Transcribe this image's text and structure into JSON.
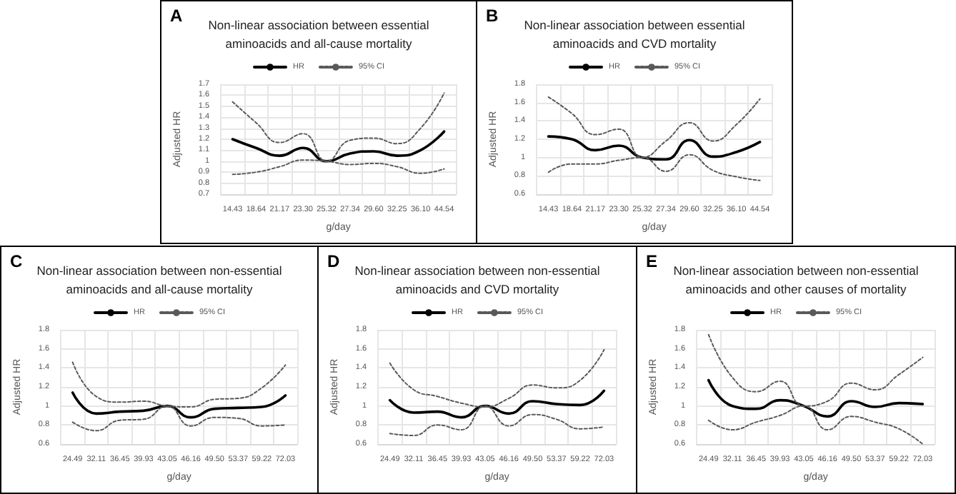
{
  "chart_data": [
    {
      "type": "line",
      "title": "Non-linear association between essential aminoacids and all-cause mortality",
      "annotations": [
        "A"
      ],
      "xlabel": "g/day",
      "ylabel": "Adjusted HR",
      "categories": [
        "14.43",
        "18.64",
        "21.17",
        "23.30",
        "25.32",
        "27.34",
        "29.60",
        "32.25",
        "36.10",
        "44.54"
      ],
      "ylim": [
        0.7,
        1.7
      ],
      "yticks": [
        0.7,
        0.8,
        0.9,
        1,
        1.1,
        1.2,
        1.3,
        1.4,
        1.5,
        1.6,
        1.7
      ],
      "grid": true,
      "legend": "top",
      "marker": "none",
      "series": [
        {
          "name": "HR",
          "color": "#000000",
          "line_style": "solid",
          "values": [
            1.2,
            1.12,
            1.05,
            1.12,
            1.0,
            1.07,
            1.09,
            1.05,
            1.1,
            1.27
          ]
        },
        {
          "name": "95% CI",
          "color": "#595959",
          "line_style": "dotted",
          "values": [
            1.54,
            1.35,
            1.17,
            1.25,
            1.0,
            1.19,
            1.21,
            1.16,
            1.3,
            1.62
          ]
        },
        {
          "color": "#595959",
          "line_style": "dotted",
          "values": [
            0.88,
            0.9,
            0.95,
            1.01,
            1.0,
            0.97,
            0.98,
            0.95,
            0.89,
            0.93
          ]
        }
      ]
    },
    {
      "type": "line",
      "title": "Non-linear association between essential aminoacids and CVD mortality",
      "annotations": [
        "B"
      ],
      "xlabel": "g/day",
      "ylabel": "Adjusted HR",
      "categories": [
        "14.43",
        "18.64",
        "21.17",
        "23.30",
        "25.32",
        "27.34",
        "29.60",
        "32.25",
        "36.10",
        "44.54"
      ],
      "ylim": [
        0.6,
        1.8
      ],
      "yticks": [
        0.6,
        0.8,
        1,
        1.2,
        1.4,
        1.6,
        1.8
      ],
      "grid": true,
      "legend": "top",
      "marker": "none",
      "series": [
        {
          "name": "HR",
          "color": "#000000",
          "line_style": "solid",
          "values": [
            1.23,
            1.2,
            1.08,
            1.13,
            1.0,
            0.98,
            1.19,
            1.01,
            1.06,
            1.17
          ]
        },
        {
          "name": "95% CI",
          "color": "#595959",
          "line_style": "dotted",
          "values": [
            1.66,
            1.48,
            1.25,
            1.31,
            1.0,
            1.18,
            1.38,
            1.18,
            1.36,
            1.64
          ]
        },
        {
          "color": "#595959",
          "line_style": "dotted",
          "values": [
            0.84,
            0.93,
            0.93,
            0.97,
            1.0,
            0.85,
            1.03,
            0.86,
            0.79,
            0.75
          ]
        }
      ]
    },
    {
      "type": "line",
      "title": "Non-linear association between non-essential aminoacids and all-cause mortality",
      "annotations": [
        "C"
      ],
      "xlabel": "g/day",
      "ylabel": "Adjusted HR",
      "categories": [
        "24.49",
        "32.11",
        "36.45",
        "39.93",
        "43.05",
        "46.16",
        "49.50",
        "53.37",
        "59.22",
        "72.03"
      ],
      "ylim": [
        0.6,
        1.8
      ],
      "yticks": [
        0.6,
        0.8,
        1,
        1.2,
        1.4,
        1.6,
        1.8
      ],
      "grid": true,
      "legend": "top",
      "marker": "none",
      "series": [
        {
          "name": "HR",
          "color": "#000000",
          "line_style": "solid",
          "values": [
            1.14,
            0.92,
            0.94,
            0.95,
            1.0,
            0.88,
            0.97,
            0.98,
            0.99,
            1.11
          ]
        },
        {
          "name": "95% CI",
          "color": "#595959",
          "line_style": "dotted",
          "values": [
            1.46,
            1.1,
            1.04,
            1.05,
            1.0,
            0.99,
            1.07,
            1.08,
            1.19,
            1.43
          ]
        },
        {
          "color": "#595959",
          "line_style": "dotted",
          "values": [
            0.83,
            0.74,
            0.85,
            0.86,
            1.0,
            0.79,
            0.88,
            0.87,
            0.79,
            0.8
          ]
        }
      ]
    },
    {
      "type": "line",
      "title": "Non-linear association between non-essential aminoacids and CVD mortality",
      "annotations": [
        "D"
      ],
      "xlabel": "g/day",
      "ylabel": "Adjusted HR",
      "categories": [
        "24.49",
        "32.11",
        "36.45",
        "39.93",
        "43.05",
        "46.16",
        "49.50",
        "53.37",
        "59.22",
        "72.03"
      ],
      "ylim": [
        0.6,
        1.8
      ],
      "yticks": [
        0.6,
        0.8,
        1,
        1.2,
        1.4,
        1.6,
        1.8
      ],
      "grid": true,
      "legend": "top",
      "marker": "none",
      "series": [
        {
          "name": "HR",
          "color": "#000000",
          "line_style": "solid",
          "values": [
            1.06,
            0.93,
            0.94,
            0.88,
            1.0,
            0.92,
            1.05,
            1.02,
            1.01,
            1.16
          ]
        },
        {
          "name": "95% CI",
          "color": "#595959",
          "line_style": "dotted",
          "values": [
            1.45,
            1.17,
            1.1,
            1.03,
            0.99,
            1.08,
            1.22,
            1.19,
            1.27,
            1.59
          ]
        },
        {
          "color": "#595959",
          "line_style": "dotted",
          "values": [
            0.71,
            0.69,
            0.8,
            0.75,
            1.0,
            0.79,
            0.91,
            0.86,
            0.76,
            0.78
          ]
        }
      ]
    },
    {
      "type": "line",
      "title": "Non-linear association between non-essential aminoacids and other causes of mortality",
      "annotations": [
        "E"
      ],
      "xlabel": "g/day",
      "ylabel": "Adjusted HR",
      "categories": [
        "24.49",
        "32.11",
        "36.45",
        "39.93",
        "43.05",
        "46.16",
        "49.50",
        "53.37",
        "59.22",
        "72.03"
      ],
      "ylim": [
        0.6,
        1.8
      ],
      "yticks": [
        0.6,
        0.8,
        1,
        1.2,
        1.4,
        1.6,
        1.8
      ],
      "grid": true,
      "legend": "top",
      "marker": "none",
      "series": [
        {
          "name": "HR",
          "color": "#000000",
          "line_style": "solid",
          "values": [
            1.27,
            1.0,
            0.97,
            1.06,
            1.0,
            0.89,
            1.05,
            0.99,
            1.03,
            1.02
          ]
        },
        {
          "name": "95% CI",
          "color": "#595959",
          "line_style": "dotted",
          "values": [
            1.75,
            1.3,
            1.15,
            1.26,
            1.0,
            1.05,
            1.24,
            1.17,
            1.33,
            1.51
          ]
        },
        {
          "color": "#595959",
          "line_style": "dotted",
          "values": [
            0.85,
            0.75,
            0.83,
            0.9,
            1.0,
            0.75,
            0.89,
            0.83,
            0.76,
            0.6
          ]
        }
      ]
    }
  ]
}
